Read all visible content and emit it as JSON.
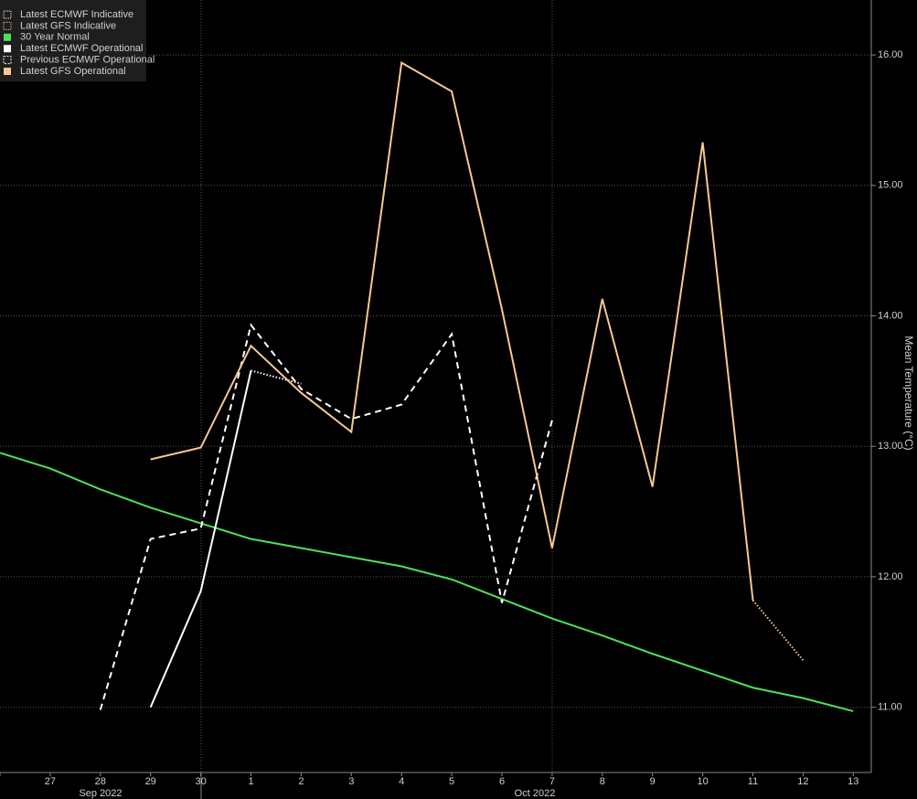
{
  "chart_data": {
    "type": "line",
    "categories": [
      null,
      "27",
      "28",
      "29",
      "30",
      "1",
      "2",
      "3",
      "4",
      "5",
      "6",
      "7",
      "8",
      "9",
      "10",
      "11",
      "12",
      "13"
    ],
    "x_group_labels": [
      "Sep 2022",
      "Oct 2022"
    ],
    "y_axis_label": "Mean Temperature (°C)",
    "ylim": [
      10.5,
      16.4
    ],
    "yticks": [
      {
        "value": 11,
        "label": "11.00"
      },
      {
        "value": 12,
        "label": "12.00"
      },
      {
        "value": 13,
        "label": "13.00"
      },
      {
        "value": 14,
        "label": "14.00"
      },
      {
        "value": 15,
        "label": "15.00"
      },
      {
        "value": 16,
        "label": "16.00"
      }
    ],
    "grid": true,
    "legend": "top-left",
    "series": [
      {
        "name": "Latest ECMWF Indicative",
        "color": "#ffffff",
        "style": "dotted",
        "values": [
          null,
          null,
          null,
          null,
          null,
          13.58,
          13.48,
          null,
          null,
          null,
          null,
          null,
          null,
          null,
          null,
          null,
          null,
          null
        ]
      },
      {
        "name": "Latest GFS Indicative",
        "color": "#f7c88f",
        "style": "dotted",
        "values": [
          null,
          null,
          null,
          null,
          null,
          null,
          null,
          null,
          null,
          null,
          null,
          null,
          null,
          null,
          null,
          11.82,
          11.36,
          null
        ]
      },
      {
        "name": "30 Year Normal",
        "color": "#4ee05d",
        "style": "solid",
        "values": [
          12.95,
          12.83,
          12.67,
          12.53,
          12.41,
          12.29,
          12.22,
          12.15,
          12.08,
          11.98,
          11.83,
          11.68,
          11.55,
          11.41,
          11.28,
          11.15,
          11.07,
          10.97
        ]
      },
      {
        "name": "Latest ECMWF Operational",
        "color": "#ffffff",
        "style": "solid",
        "values": [
          null,
          null,
          null,
          11.0,
          11.89,
          13.58,
          null,
          null,
          null,
          null,
          null,
          null,
          null,
          null,
          null,
          null,
          null,
          null
        ]
      },
      {
        "name": "Previous ECMWF Operational",
        "color": "#ffffff",
        "style": "dashed",
        "values": [
          null,
          null,
          10.98,
          12.29,
          12.37,
          13.93,
          13.44,
          13.21,
          13.32,
          13.86,
          11.8,
          13.2,
          null,
          null,
          null,
          null,
          null,
          null
        ]
      },
      {
        "name": "Latest GFS Operational",
        "color": "#f7c88f",
        "style": "solid",
        "values": [
          null,
          null,
          null,
          12.9,
          12.99,
          13.77,
          13.41,
          13.11,
          15.94,
          15.72,
          14.05,
          12.22,
          14.13,
          12.69,
          15.33,
          11.82,
          null,
          null
        ]
      }
    ]
  }
}
